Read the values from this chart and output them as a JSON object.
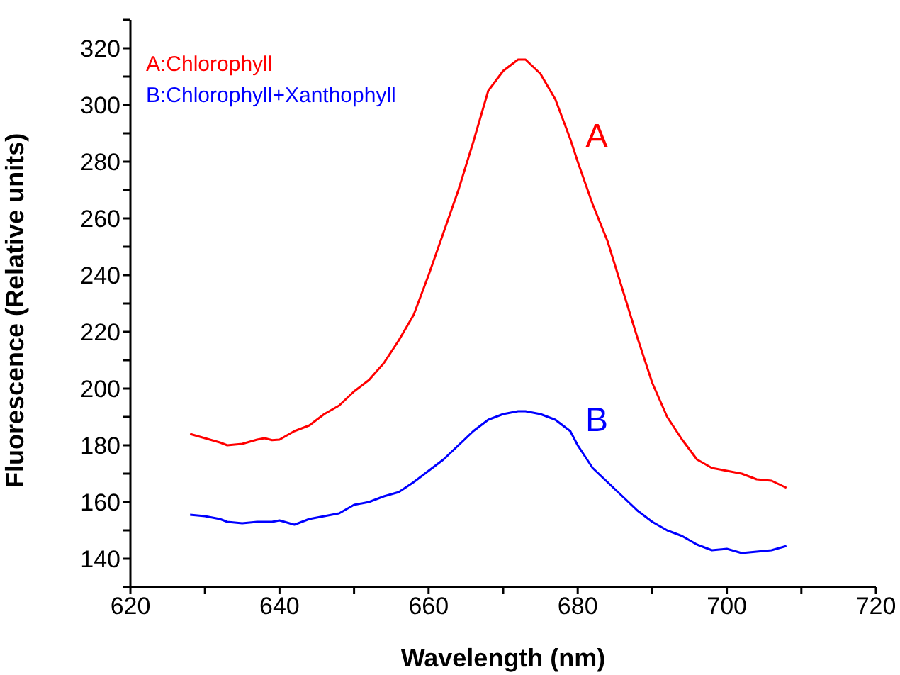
{
  "chart_data": {
    "type": "line",
    "xlabel": "Wavelength (nm)",
    "ylabel": "Fluorescence (Relative units)",
    "x": [
      628,
      630,
      632,
      633,
      635,
      637,
      638,
      639,
      640,
      642,
      644,
      646,
      648,
      650,
      652,
      654,
      656,
      658,
      660,
      662,
      664,
      666,
      668,
      670,
      672,
      673,
      675,
      677,
      679,
      680,
      682,
      684,
      686,
      688,
      690,
      692,
      694,
      696,
      698,
      700,
      702,
      704,
      706,
      708
    ],
    "series": [
      {
        "name": "A:Chlorophyll",
        "color": "#ff0000",
        "values": [
          184,
          182.5,
          181,
          180,
          180.5,
          182,
          182.5,
          181.8,
          182,
          185,
          187,
          191,
          194,
          199,
          203,
          209,
          217,
          226,
          240,
          255,
          270,
          287,
          305,
          312,
          316,
          316,
          311,
          302,
          288,
          280,
          265,
          252,
          235,
          218,
          202,
          190,
          182,
          175,
          172,
          171,
          170,
          168,
          167.5,
          165
        ]
      },
      {
        "name": "B:Chlorophyll+Xanthophyll",
        "color": "#0000ff",
        "values": [
          155.5,
          155,
          154,
          153,
          152.5,
          153,
          153,
          153,
          153.5,
          152,
          154,
          155,
          156,
          159,
          160,
          162,
          163.5,
          167,
          171,
          175,
          180,
          185,
          189,
          191,
          192,
          192,
          191,
          189,
          185,
          180,
          172,
          167,
          162,
          157,
          153,
          150,
          148,
          145,
          143,
          143.5,
          142,
          142.5,
          143,
          144.5
        ]
      }
    ],
    "annotations": [
      "A",
      "B"
    ],
    "xlim": [
      620,
      720
    ],
    "xticks": [
      620,
      {
        "value": 630,
        "label": null
      },
      640,
      {
        "value": 650,
        "label": null
      },
      660,
      {
        "value": 670,
        "label": null
      },
      680,
      {
        "value": 690,
        "label": null
      },
      700,
      {
        "value": 710,
        "label": null
      },
      720
    ],
    "ylim": [
      130,
      330
    ],
    "yticks": [
      {
        "value": 130,
        "label": null
      },
      140,
      {
        "value": 150,
        "label": null
      },
      160,
      {
        "value": 170,
        "label": null
      },
      180,
      {
        "value": 190,
        "label": null
      },
      200,
      {
        "value": 210,
        "label": null
      },
      220,
      {
        "value": 230,
        "label": null
      },
      240,
      {
        "value": 250,
        "label": null
      },
      260,
      {
        "value": 270,
        "label": null
      },
      280,
      {
        "value": 290,
        "label": null
      },
      300,
      {
        "value": 310,
        "label": null
      },
      320,
      {
        "value": 330,
        "label": null
      }
    ],
    "legend": "top left",
    "marker": "none",
    "line_style": "solid"
  }
}
